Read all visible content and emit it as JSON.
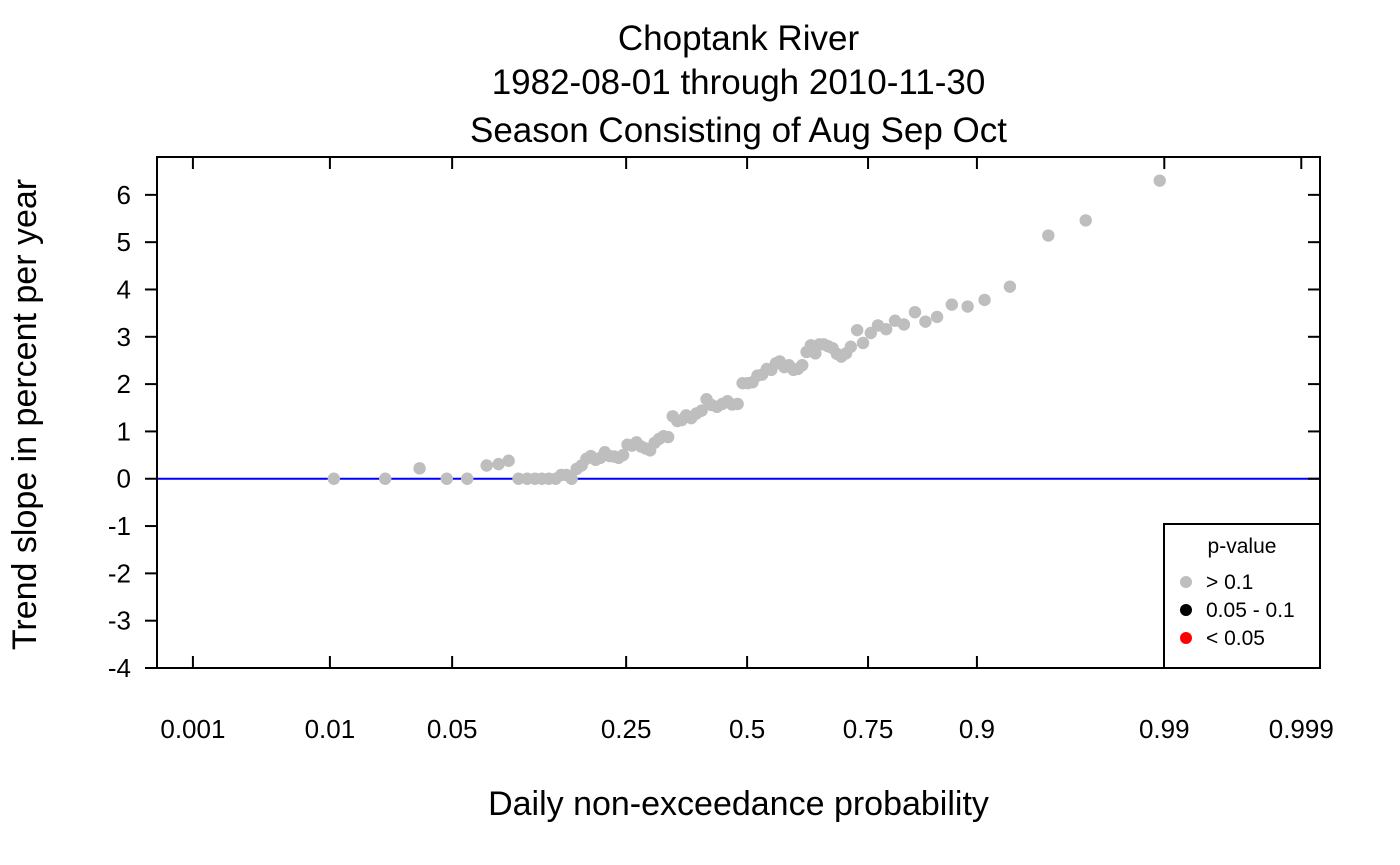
{
  "chart_data": {
    "type": "scatter",
    "title": [
      "Choptank River",
      "1982-08-01 through 2010-11-30",
      "Season Consisting of Aug Sep Oct"
    ],
    "xlabel": "Daily non-exceedance probability",
    "ylabel": "Trend slope in percent per year",
    "x_scale": "normal-probability",
    "xlim": [
      0.0005,
      0.9993
    ],
    "ylim": [
      -4,
      6.8
    ],
    "x_ticks": [
      {
        "value": 0.001,
        "label": "0.001"
      },
      {
        "value": 0.01,
        "label": "0.01"
      },
      {
        "value": 0.05,
        "label": "0.05"
      },
      {
        "value": 0.25,
        "label": "0.25"
      },
      {
        "value": 0.5,
        "label": "0.5"
      },
      {
        "value": 0.75,
        "label": "0.75"
      },
      {
        "value": 0.9,
        "label": "0.9"
      },
      {
        "value": 0.99,
        "label": "0.99"
      },
      {
        "value": 0.999,
        "label": "0.999"
      }
    ],
    "y_ticks": [
      {
        "value": 6,
        "label": "6"
      },
      {
        "value": 5,
        "label": "5"
      },
      {
        "value": 4,
        "label": "4"
      },
      {
        "value": 3,
        "label": "3"
      },
      {
        "value": 2,
        "label": "2"
      },
      {
        "value": 1,
        "label": "1"
      },
      {
        "value": 0,
        "label": "0"
      },
      {
        "value": -1,
        "label": "-1"
      },
      {
        "value": -2,
        "label": "-2"
      },
      {
        "value": -3,
        "label": "-3"
      },
      {
        "value": -4,
        "label": "-4"
      }
    ],
    "reference_line": {
      "y": 0,
      "color": "#0000ff"
    },
    "legend": {
      "title": "p-value",
      "position": "bottom-right",
      "entries": [
        {
          "label": "> 0.1",
          "color": "#bebebe"
        },
        {
          "label": "0.05 - 0.1",
          "color": "#000000"
        },
        {
          "label": "< 0.05",
          "color": "#ff0000"
        }
      ]
    },
    "series": [
      {
        "color": "#bebebe",
        "points": [
          [
            0.0106,
            0.0
          ],
          [
            0.0218,
            0.0
          ],
          [
            0.0339,
            0.22
          ],
          [
            0.047,
            0.0
          ],
          [
            0.0593,
            0.0
          ],
          [
            0.0732,
            0.28
          ],
          [
            0.0829,
            0.31
          ],
          [
            0.0918,
            0.38
          ],
          [
            0.1012,
            0.0
          ],
          [
            0.1101,
            0.0
          ],
          [
            0.1184,
            0.0
          ],
          [
            0.1262,
            0.0
          ],
          [
            0.1345,
            0.0
          ],
          [
            0.1429,
            0.0
          ],
          [
            0.1499,
            0.08
          ],
          [
            0.1568,
            0.08
          ],
          [
            0.1639,
            0.0
          ],
          [
            0.171,
            0.21
          ],
          [
            0.1781,
            0.28
          ],
          [
            0.185,
            0.42
          ],
          [
            0.1918,
            0.48
          ],
          [
            0.1991,
            0.4
          ],
          [
            0.2066,
            0.44
          ],
          [
            0.2138,
            0.56
          ],
          [
            0.2216,
            0.48
          ],
          [
            0.229,
            0.47
          ],
          [
            0.2368,
            0.44
          ],
          [
            0.2446,
            0.5
          ],
          [
            0.2524,
            0.72
          ],
          [
            0.2606,
            0.7
          ],
          [
            0.2687,
            0.77
          ],
          [
            0.2773,
            0.68
          ],
          [
            0.2858,
            0.64
          ],
          [
            0.2944,
            0.6
          ],
          [
            0.3031,
            0.76
          ],
          [
            0.3117,
            0.84
          ],
          [
            0.3207,
            0.9
          ],
          [
            0.3299,
            0.88
          ],
          [
            0.3391,
            1.32
          ],
          [
            0.3485,
            1.22
          ],
          [
            0.3577,
            1.24
          ],
          [
            0.3668,
            1.34
          ],
          [
            0.3778,
            1.28
          ],
          [
            0.3889,
            1.38
          ],
          [
            0.4,
            1.44
          ],
          [
            0.4105,
            1.68
          ],
          [
            0.4212,
            1.56
          ],
          [
            0.4332,
            1.52
          ],
          [
            0.4448,
            1.58
          ],
          [
            0.4565,
            1.64
          ],
          [
            0.4666,
            1.57
          ],
          [
            0.479,
            1.58
          ],
          [
            0.49,
            2.02
          ],
          [
            0.5015,
            2.02
          ],
          [
            0.5122,
            2.04
          ],
          [
            0.523,
            2.18
          ],
          [
            0.5335,
            2.2
          ],
          [
            0.5437,
            2.32
          ],
          [
            0.5538,
            2.3
          ],
          [
            0.5638,
            2.44
          ],
          [
            0.5722,
            2.48
          ],
          [
            0.5822,
            2.36
          ],
          [
            0.5921,
            2.4
          ],
          [
            0.6019,
            2.3
          ],
          [
            0.6114,
            2.32
          ],
          [
            0.6208,
            2.4
          ],
          [
            0.6299,
            2.68
          ],
          [
            0.6389,
            2.82
          ],
          [
            0.6482,
            2.65
          ],
          [
            0.6567,
            2.84
          ],
          [
            0.6653,
            2.84
          ],
          [
            0.6742,
            2.8
          ],
          [
            0.6831,
            2.76
          ],
          [
            0.6917,
            2.64
          ],
          [
            0.7003,
            2.58
          ],
          [
            0.7095,
            2.65
          ],
          [
            0.7185,
            2.79
          ],
          [
            0.7303,
            3.14
          ],
          [
            0.741,
            2.87
          ],
          [
            0.7548,
            3.08
          ],
          [
            0.7672,
            3.24
          ],
          [
            0.781,
            3.16
          ],
          [
            0.7953,
            3.34
          ],
          [
            0.8091,
            3.26
          ],
          [
            0.8254,
            3.52
          ],
          [
            0.84,
            3.32
          ],
          [
            0.8553,
            3.42
          ],
          [
            0.8732,
            3.68
          ],
          [
            0.8906,
            3.64
          ],
          [
            0.9073,
            3.78
          ],
          [
            0.9286,
            4.06
          ],
          [
            0.9535,
            5.14
          ],
          [
            0.9705,
            5.46
          ],
          [
            0.9893,
            6.3
          ]
        ]
      }
    ]
  }
}
